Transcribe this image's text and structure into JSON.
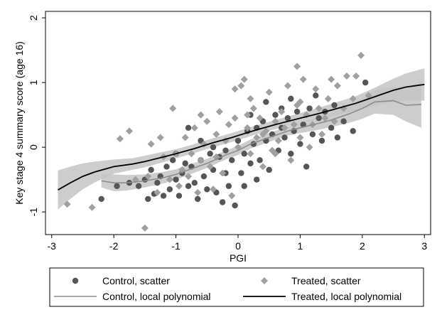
{
  "chart_data": {
    "type": "scatter",
    "title": "",
    "xlabel": "PGI",
    "ylabel": "Key stage 4 summary score (age 16)",
    "xlim": [
      -3.1,
      3.1
    ],
    "ylim": [
      -1.35,
      2.1
    ],
    "x_ticks": [
      -3,
      -2,
      -1,
      0,
      1,
      2,
      3
    ],
    "y_ticks": [
      -1,
      0,
      1,
      2
    ],
    "grid": false,
    "legend_position": "bottom",
    "colors": {
      "control_scatter": "#555555",
      "treated_scatter": "#a0a0a0",
      "control_line": "#8c8c8c",
      "treated_line": "#000000",
      "ci_band": "#c4c4c4"
    },
    "legend": [
      {
        "label": "Control, scatter",
        "key": "control_scatter",
        "marker": "circle"
      },
      {
        "label": "Treated, scatter",
        "key": "treated_scatter",
        "marker": "diamond"
      },
      {
        "label": "Control, local polynomial",
        "key": "control_line",
        "marker": "line"
      },
      {
        "label": "Treated, local polynomial",
        "key": "treated_line",
        "marker": "line"
      }
    ],
    "series": [
      {
        "name": "Control, scatter",
        "kind": "scatter",
        "marker": "circle",
        "points": [
          [
            -2.2,
            -0.8
          ],
          [
            -1.95,
            -0.6
          ],
          [
            -1.75,
            -0.55
          ],
          [
            -1.6,
            -0.6
          ],
          [
            -1.45,
            -0.8
          ],
          [
            -1.4,
            -0.35
          ],
          [
            -1.35,
            -0.72
          ],
          [
            -1.3,
            -0.55
          ],
          [
            -1.25,
            -0.45
          ],
          [
            -1.2,
            -0.75
          ],
          [
            -1.15,
            -0.3
          ],
          [
            -1.1,
            -0.65
          ],
          [
            -1.05,
            -0.2
          ],
          [
            -1.0,
            -0.5
          ],
          [
            -0.95,
            -0.75
          ],
          [
            -0.9,
            -0.4
          ],
          [
            -0.85,
            -0.25
          ],
          [
            -0.8,
            -0.6
          ],
          [
            -0.75,
            -0.3
          ],
          [
            -0.7,
            -0.55
          ],
          [
            -0.65,
            -0.8
          ],
          [
            -0.6,
            -0.2
          ],
          [
            -0.55,
            -0.45
          ],
          [
            -0.5,
            -0.65
          ],
          [
            -0.45,
            -0.1
          ],
          [
            -0.4,
            -0.35
          ],
          [
            -0.35,
            -0.7
          ],
          [
            -0.3,
            -0.15
          ],
          [
            -0.25,
            -0.85
          ],
          [
            -0.2,
            -0.4
          ],
          [
            -0.15,
            -0.6
          ],
          [
            -0.1,
            -0.2
          ],
          [
            -0.05,
            -0.9
          ],
          [
            0.0,
            0.1
          ],
          [
            0.05,
            -0.4
          ],
          [
            0.1,
            -0.1
          ],
          [
            0.15,
            0.25
          ],
          [
            0.2,
            -0.25
          ],
          [
            0.25,
            0.05
          ],
          [
            0.3,
            0.3
          ],
          [
            0.35,
            -0.2
          ],
          [
            0.4,
            0.4
          ],
          [
            0.45,
            0.1
          ],
          [
            0.5,
            -0.35
          ],
          [
            0.55,
            0.2
          ],
          [
            0.6,
            0.5
          ],
          [
            0.65,
            -0.05
          ],
          [
            0.7,
            0.3
          ],
          [
            0.75,
            0.15
          ],
          [
            0.8,
            0.45
          ],
          [
            0.85,
            -0.1
          ],
          [
            0.9,
            0.25
          ],
          [
            0.95,
            0.55
          ],
          [
            1.0,
            0.05
          ],
          [
            1.05,
            0.35
          ],
          [
            1.1,
            -0.3
          ],
          [
            1.15,
            0.6
          ],
          [
            1.2,
            0.2
          ],
          [
            1.3,
            0.45
          ],
          [
            1.35,
            0.1
          ],
          [
            1.4,
            0.55
          ],
          [
            1.5,
            0.3
          ],
          [
            1.55,
            0.65
          ],
          [
            1.6,
            0.15
          ],
          [
            1.7,
            0.4
          ],
          [
            1.85,
            0.25
          ],
          [
            2.05,
            1.0
          ],
          [
            -0.8,
            0.3
          ],
          [
            -0.6,
            0.1
          ],
          [
            -0.4,
            0.0
          ],
          [
            -0.2,
            -0.05
          ],
          [
            0.1,
            -0.6
          ],
          [
            0.3,
            -0.5
          ],
          [
            -1.0,
            -0.1
          ],
          [
            -1.5,
            -0.5
          ],
          [
            0.7,
            0.6
          ],
          [
            1.25,
            0.8
          ],
          [
            0.85,
            0.75
          ],
          [
            0.45,
            0.7
          ],
          [
            0.2,
            0.5
          ]
        ]
      },
      {
        "name": "Treated, scatter",
        "kind": "scatter",
        "marker": "diamond",
        "points": [
          [
            -2.75,
            -0.88
          ],
          [
            -2.35,
            -0.93
          ],
          [
            -1.9,
            0.13
          ],
          [
            -1.65,
            -0.5
          ],
          [
            -1.5,
            -1.25
          ],
          [
            -1.45,
            -0.45
          ],
          [
            -1.4,
            0.05
          ],
          [
            -1.3,
            -0.7
          ],
          [
            -1.2,
            -0.15
          ],
          [
            -1.1,
            -0.5
          ],
          [
            -1.05,
            0.6
          ],
          [
            -1.0,
            -0.1
          ],
          [
            -0.95,
            -0.6
          ],
          [
            -0.9,
            -0.35
          ],
          [
            -0.85,
            0.15
          ],
          [
            -0.8,
            -0.45
          ],
          [
            -0.75,
            -0.1
          ],
          [
            -0.7,
            0.3
          ],
          [
            -0.65,
            -0.7
          ],
          [
            -0.6,
            -0.2
          ],
          [
            -0.55,
            0.05
          ],
          [
            -0.5,
            0.4
          ],
          [
            -0.45,
            -0.3
          ],
          [
            -0.4,
            -0.65
          ],
          [
            -0.35,
            0.2
          ],
          [
            -0.3,
            0.55
          ],
          [
            -0.25,
            -0.4
          ],
          [
            -0.2,
            0.1
          ],
          [
            -0.15,
            0.35
          ],
          [
            -0.1,
            -0.75
          ],
          [
            -0.05,
            0.45
          ],
          [
            0.0,
            0.0
          ],
          [
            0.05,
            0.95
          ],
          [
            0.1,
            1.05
          ],
          [
            0.15,
            0.3
          ],
          [
            0.2,
            -0.1
          ],
          [
            0.25,
            0.6
          ],
          [
            0.3,
            0.15
          ],
          [
            0.35,
            0.45
          ],
          [
            0.4,
            -0.3
          ],
          [
            0.45,
            0.25
          ],
          [
            0.5,
            0.85
          ],
          [
            0.55,
            -0.05
          ],
          [
            0.6,
            0.4
          ],
          [
            0.65,
            0.1
          ],
          [
            0.7,
            0.55
          ],
          [
            0.75,
            0.3
          ],
          [
            0.8,
            0.95
          ],
          [
            0.85,
            -0.2
          ],
          [
            0.9,
            0.35
          ],
          [
            0.95,
            0.65
          ],
          [
            1.0,
            0.15
          ],
          [
            1.05,
            1.05
          ],
          [
            1.1,
            0.5
          ],
          [
            1.15,
            0.0
          ],
          [
            1.2,
            0.35
          ],
          [
            1.25,
            0.9
          ],
          [
            1.3,
            0.6
          ],
          [
            1.35,
            0.2
          ],
          [
            1.4,
            0.45
          ],
          [
            1.45,
            0.75
          ],
          [
            1.55,
            0.4
          ],
          [
            1.6,
            0.95
          ],
          [
            1.7,
            0.6
          ],
          [
            1.75,
            1.1
          ],
          [
            1.85,
            0.75
          ],
          [
            1.9,
            1.1
          ],
          [
            1.98,
            1.42
          ],
          [
            2.1,
            0.8
          ],
          [
            -0.05,
            0.9
          ],
          [
            0.95,
            1.25
          ],
          [
            -0.6,
            0.5
          ],
          [
            0.2,
            0.75
          ],
          [
            -1.75,
            0.25
          ],
          [
            -1.25,
            0.15
          ],
          [
            0.6,
            -0.1
          ],
          [
            1.0,
            0.7
          ],
          [
            1.5,
            1.05
          ],
          [
            0.4,
            0.2
          ],
          [
            -0.35,
            -0.15
          ],
          [
            0.15,
            0.5
          ]
        ]
      },
      {
        "name": "Control, local polynomial",
        "kind": "line",
        "x": [
          -2.2,
          -2.0,
          -1.8,
          -1.5,
          -1.2,
          -1.0,
          -0.8,
          -0.5,
          -0.2,
          0.0,
          0.2,
          0.5,
          0.8,
          1.0,
          1.3,
          1.5,
          1.8,
          2.0,
          2.2,
          2.5,
          2.7,
          2.95
        ],
        "y": [
          -0.52,
          -0.55,
          -0.55,
          -0.52,
          -0.47,
          -0.42,
          -0.35,
          -0.25,
          -0.12,
          -0.05,
          0.05,
          0.15,
          0.25,
          0.3,
          0.37,
          0.42,
          0.52,
          0.6,
          0.7,
          0.72,
          0.65,
          0.66
        ],
        "ci_lower": [
          -0.62,
          -0.68,
          -0.67,
          -0.62,
          -0.56,
          -0.5,
          -0.43,
          -0.32,
          -0.19,
          -0.12,
          -0.02,
          0.08,
          0.18,
          0.22,
          0.27,
          0.31,
          0.38,
          0.44,
          0.52,
          0.5,
          0.4,
          0.3
        ],
        "ci_upper": [
          -0.42,
          -0.42,
          -0.43,
          -0.42,
          -0.38,
          -0.34,
          -0.27,
          -0.18,
          -0.05,
          0.02,
          0.12,
          0.22,
          0.32,
          0.38,
          0.47,
          0.53,
          0.66,
          0.76,
          0.88,
          0.94,
          0.9,
          1.02
        ]
      },
      {
        "name": "Treated, local polynomial",
        "kind": "line",
        "x": [
          -2.9,
          -2.7,
          -2.5,
          -2.3,
          -2.0,
          -1.7,
          -1.5,
          -1.2,
          -1.0,
          -0.7,
          -0.4,
          -0.1,
          0.0,
          0.3,
          0.6,
          1.0,
          1.3,
          1.6,
          1.9,
          2.2,
          2.5,
          2.7,
          3.0
        ],
        "y": [
          -0.66,
          -0.55,
          -0.45,
          -0.38,
          -0.3,
          -0.26,
          -0.22,
          -0.15,
          -0.1,
          -0.02,
          0.07,
          0.15,
          0.18,
          0.27,
          0.35,
          0.45,
          0.52,
          0.6,
          0.68,
          0.78,
          0.88,
          0.93,
          0.97
        ],
        "ci_lower": [
          -0.96,
          -0.8,
          -0.65,
          -0.54,
          -0.41,
          -0.35,
          -0.31,
          -0.23,
          -0.17,
          -0.09,
          0.0,
          0.08,
          0.11,
          0.2,
          0.28,
          0.37,
          0.43,
          0.5,
          0.57,
          0.64,
          0.7,
          0.72,
          0.72
        ],
        "ci_upper": [
          -0.36,
          -0.3,
          -0.25,
          -0.22,
          -0.19,
          -0.17,
          -0.13,
          -0.07,
          -0.03,
          0.05,
          0.14,
          0.22,
          0.25,
          0.34,
          0.42,
          0.53,
          0.61,
          0.7,
          0.79,
          0.92,
          1.06,
          1.14,
          1.22
        ]
      }
    ]
  }
}
